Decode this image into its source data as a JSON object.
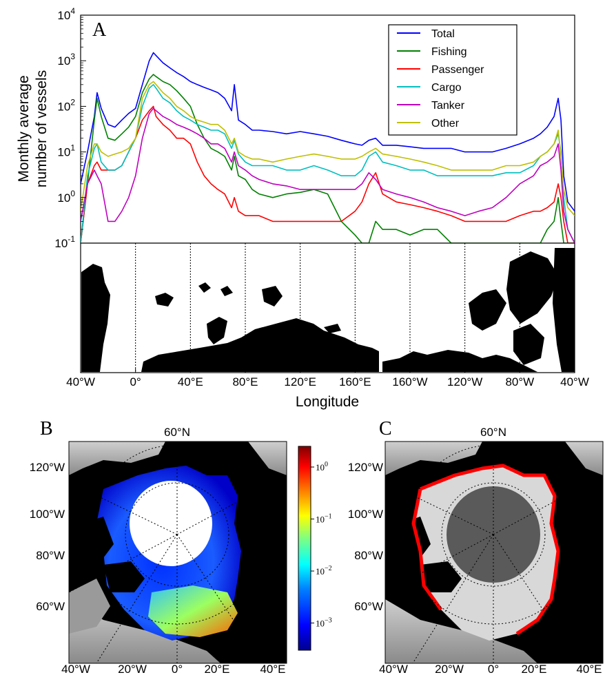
{
  "panels": {
    "a_letter": "A",
    "b_letter": "B",
    "c_letter": "C"
  },
  "chart_data": {
    "type": "line",
    "ylabel_line1": "Monthly average",
    "ylabel_line2": "number of vessels",
    "xlabel": "Longitude",
    "y_scale": "log",
    "ylim": [
      0.1,
      10000
    ],
    "y_ticks": [
      {
        "value": 0.1,
        "base": "10",
        "exp": "-1"
      },
      {
        "value": 1,
        "base": "10",
        "exp": "0"
      },
      {
        "value": 10,
        "base": "10",
        "exp": "1"
      },
      {
        "value": 100,
        "base": "10",
        "exp": "2"
      },
      {
        "value": 1000,
        "base": "10",
        "exp": "3"
      },
      {
        "value": 10000,
        "base": "10",
        "exp": "4"
      }
    ],
    "x_ticks": [
      "40°W",
      "0°",
      "40°E",
      "80°E",
      "120°E",
      "160°E",
      "160°W",
      "120°W",
      "80°W",
      "40°W"
    ],
    "x_tick_positions_deg": [
      -40,
      0,
      40,
      80,
      120,
      160,
      200,
      240,
      280,
      320
    ],
    "xlim": [
      -40,
      320
    ],
    "legend_position": "top-right",
    "x": [
      -40,
      -35,
      -30,
      -28,
      -25,
      -20,
      -15,
      -10,
      -5,
      0,
      5,
      10,
      13,
      15,
      20,
      25,
      30,
      35,
      40,
      45,
      50,
      55,
      60,
      65,
      70,
      72,
      75,
      80,
      85,
      90,
      100,
      110,
      120,
      130,
      140,
      150,
      160,
      165,
      170,
      175,
      180,
      190,
      200,
      210,
      220,
      230,
      240,
      250,
      260,
      270,
      280,
      290,
      295,
      300,
      305,
      308,
      310,
      312,
      315,
      320
    ],
    "series": [
      {
        "name": "Total",
        "color": "#0000ff",
        "values": [
          2,
          10,
          60,
          200,
          90,
          40,
          35,
          50,
          70,
          90,
          300,
          1000,
          1500,
          1300,
          900,
          700,
          550,
          450,
          350,
          300,
          260,
          230,
          200,
          150,
          80,
          300,
          50,
          40,
          30,
          30,
          28,
          25,
          28,
          25,
          22,
          18,
          15,
          14,
          18,
          20,
          14,
          14,
          13,
          12,
          12,
          12,
          10,
          10,
          10,
          12,
          15,
          20,
          25,
          35,
          60,
          150,
          50,
          3,
          0.8,
          0.5
        ]
      },
      {
        "name": "Fishing",
        "color": "#008000",
        "values": [
          0.1,
          2,
          50,
          150,
          60,
          20,
          18,
          25,
          35,
          60,
          200,
          400,
          500,
          450,
          350,
          300,
          220,
          150,
          100,
          40,
          20,
          12,
          10,
          8,
          4,
          8,
          3,
          2.5,
          1.5,
          1.2,
          1.0,
          1.2,
          1.3,
          1.5,
          1.2,
          0.3,
          0.15,
          0.1,
          0.1,
          0.3,
          0.2,
          0.2,
          0.15,
          0.2,
          0.2,
          0.1,
          0.1,
          0.1,
          0.1,
          0.1,
          0.1,
          0.1,
          0.1,
          0.2,
          0.3,
          1,
          0.3,
          0.1,
          0.1,
          0.1
        ]
      },
      {
        "name": "Passenger",
        "color": "#ff0000",
        "values": [
          0.1,
          2,
          5,
          6,
          4,
          4,
          4,
          5,
          10,
          20,
          50,
          80,
          100,
          60,
          40,
          30,
          20,
          20,
          15,
          6,
          3,
          2,
          1.5,
          1.2,
          0.6,
          1.0,
          0.5,
          0.4,
          0.4,
          0.4,
          0.3,
          0.3,
          0.3,
          0.3,
          0.3,
          0.3,
          0.5,
          0.8,
          2.0,
          3.5,
          1.2,
          0.8,
          0.7,
          0.6,
          0.5,
          0.4,
          0.3,
          0.3,
          0.3,
          0.3,
          0.4,
          0.5,
          0.5,
          0.6,
          0.8,
          2.0,
          1.0,
          0.3,
          0.1,
          0.1
        ]
      },
      {
        "name": "Cargo",
        "color": "#00bfbf",
        "values": [
          0.1,
          3,
          12,
          15,
          6,
          4,
          4,
          5,
          10,
          20,
          100,
          250,
          300,
          250,
          150,
          120,
          80,
          60,
          50,
          40,
          35,
          30,
          30,
          25,
          12,
          18,
          9,
          6,
          5,
          5,
          5,
          4,
          4,
          5,
          4,
          3,
          3,
          4,
          8,
          10,
          6,
          5,
          4,
          4,
          3,
          3,
          3,
          3,
          3,
          3.5,
          3.5,
          5,
          8,
          10,
          15,
          25,
          10,
          1,
          0.2,
          0.1
        ]
      },
      {
        "name": "Tanker",
        "color": "#bf00bf",
        "values": [
          0.3,
          2,
          4,
          3,
          2,
          0.3,
          0.3,
          0.5,
          1,
          3,
          20,
          70,
          90,
          80,
          60,
          50,
          40,
          35,
          30,
          25,
          20,
          15,
          15,
          12,
          6,
          10,
          5,
          4,
          3,
          2.5,
          2,
          1.8,
          1.5,
          1.5,
          1.5,
          1.5,
          1.5,
          2,
          3.5,
          2.5,
          1.5,
          1.2,
          1.0,
          0.8,
          0.6,
          0.5,
          0.4,
          0.5,
          0.6,
          1,
          2,
          3,
          5,
          6,
          8,
          15,
          4,
          0.5,
          0.2,
          0.1
        ]
      },
      {
        "name": "Other",
        "color": "#bfbf00",
        "values": [
          0.5,
          5,
          15,
          15,
          10,
          8,
          9,
          10,
          12,
          20,
          150,
          300,
          350,
          300,
          200,
          150,
          100,
          80,
          60,
          50,
          45,
          40,
          40,
          30,
          15,
          20,
          10,
          8,
          7,
          7,
          6,
          7,
          8,
          9,
          8,
          7,
          7,
          8,
          10,
          12,
          9,
          8,
          7,
          6,
          5,
          4,
          4,
          4,
          4,
          5,
          5,
          6,
          8,
          10,
          15,
          30,
          8,
          1.5,
          0.6,
          0.4
        ]
      }
    ]
  },
  "colorbar": {
    "ticks": [
      {
        "value": 1,
        "base": "10",
        "exp": "0"
      },
      {
        "value": 0.1,
        "base": "10",
        "exp": "−1"
      },
      {
        "value": 0.01,
        "base": "10",
        "exp": "−2"
      },
      {
        "value": 0.001,
        "base": "10",
        "exp": "−3"
      }
    ],
    "range": [
      0.0003,
      2.5
    ],
    "colors": [
      "#00008f",
      "#0000ff",
      "#0080ff",
      "#00ffff",
      "#80ff80",
      "#ffff00",
      "#ff8000",
      "#ff0000",
      "#800000"
    ]
  },
  "map_b": {
    "top_label": "60°N",
    "left_labels": [
      "120°W",
      "100°W",
      "80°W",
      "60°W"
    ],
    "bottom_labels": [
      "40°W",
      "20°W",
      "0°",
      "20°E",
      "40°E"
    ]
  },
  "map_c": {
    "top_label": "60°N",
    "left_labels": [
      "120°W",
      "100°W",
      "80°W",
      "60°W"
    ],
    "bottom_labels": [
      "40°W",
      "20°W",
      "0°",
      "20°E",
      "40°E"
    ]
  },
  "colors": {
    "land": "#000000",
    "ocean_grey": "#a8a8a8",
    "ice_dark": "#555555",
    "route_red": "#ff0000"
  }
}
